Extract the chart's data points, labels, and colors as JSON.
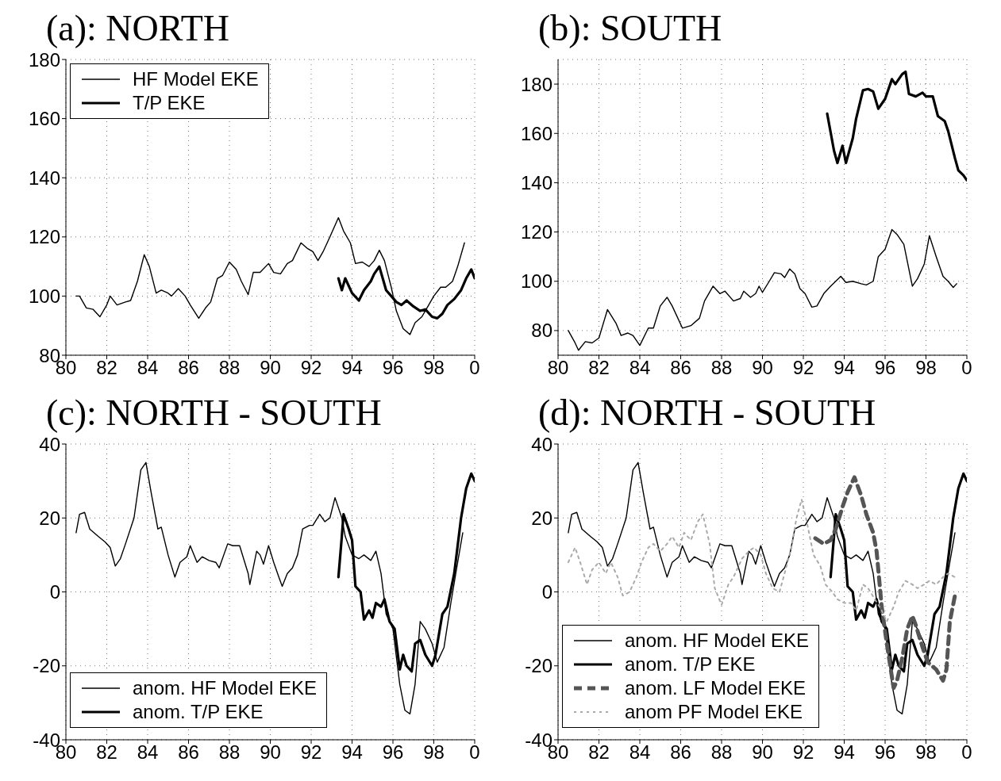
{
  "chart_data": [
    {
      "type": "line",
      "title": "(a):  NORTH",
      "xlim": [
        "1980",
        "2000"
      ],
      "ylim": [
        80,
        180
      ],
      "xticks": [
        {
          "value": "1980",
          "label": "80"
        },
        {
          "value": "1982",
          "label": "82"
        },
        {
          "value": "1984",
          "label": "84"
        },
        {
          "value": "1986",
          "label": "86"
        },
        {
          "value": "1988",
          "label": "88"
        },
        {
          "value": "1990",
          "label": "90"
        },
        {
          "value": "1992",
          "label": "92"
        },
        {
          "value": "1994",
          "label": "94"
        },
        {
          "value": "1996",
          "label": "96"
        },
        {
          "value": "1998",
          "label": "98"
        },
        {
          "value": "2000",
          "label": "0"
        }
      ],
      "yticks": [
        80,
        100,
        120,
        140,
        160,
        180
      ],
      "grid": true,
      "legend": "top left",
      "series": [
        {
          "name": "HF Model EKE",
          "color": "#000000",
          "x": [
            "1980-07",
            "1980-09",
            "1981-01",
            "1981-05",
            "1981-09",
            "1982-01",
            "1982-03",
            "1982-07",
            "1982-12",
            "1983-03",
            "1983-07",
            "1983-11",
            "1984-02",
            "1984-06",
            "1984-09",
            "1985-01",
            "1985-03",
            "1985-07",
            "1985-11",
            "1986-02",
            "1986-07",
            "1986-11",
            "1987-02",
            "1987-06",
            "1987-09",
            "1988-01",
            "1988-05",
            "1988-08",
            "1988-12",
            "1989-03",
            "1989-07",
            "1989-12",
            "1990-03",
            "1990-07",
            "1990-11",
            "1991-02",
            "1991-07",
            "1991-11",
            "1992-02",
            "1992-05",
            "1992-08",
            "1992-12",
            "1993-05",
            "1993-08",
            "1993-12",
            "1994-03",
            "1994-07",
            "1994-11",
            "1995-02",
            "1995-05",
            "1995-08",
            "1995-12",
            "1996-03",
            "1996-07",
            "1996-11",
            "1997-02",
            "1997-06",
            "1997-09",
            "1998-01",
            "1998-05",
            "1998-08",
            "1998-12",
            "1999-03",
            "1999-07"
          ],
          "values": [
            100,
            100,
            96,
            95.5,
            93,
            97,
            100,
            97,
            98,
            98.5,
            105,
            114,
            110,
            101,
            102,
            101,
            100,
            102.5,
            100,
            97,
            92.5,
            96,
            98,
            106,
            107,
            111.5,
            109,
            105,
            100.5,
            108,
            108,
            111,
            108,
            107.5,
            111,
            112,
            118,
            116,
            115,
            112,
            115,
            120,
            126.5,
            122,
            118,
            111,
            111.5,
            110,
            112,
            115.5,
            112,
            103,
            95,
            89,
            87,
            91,
            93,
            96,
            100,
            103,
            103,
            105,
            110,
            118
          ]
        },
        {
          "name": "T/P EKE",
          "color": "#000000",
          "x": [
            "1993-05",
            "1993-07",
            "1993-09",
            "1994-01",
            "1994-05",
            "1994-08",
            "1994-12",
            "1995-02",
            "1995-05",
            "1995-07",
            "1995-09",
            "1995-12",
            "1996-03",
            "1996-06",
            "1996-09",
            "1997-01",
            "1997-05",
            "1997-08",
            "1997-12",
            "1998-03",
            "1998-06",
            "1998-09",
            "1999-01",
            "1999-05",
            "1999-08",
            "1999-11",
            "2000-01"
          ],
          "values": [
            106,
            102,
            106,
            101,
            98.5,
            102,
            105,
            107.5,
            110,
            106,
            102,
            100,
            98,
            97,
            98.5,
            96.5,
            95,
            95.5,
            93,
            92.5,
            94,
            97,
            99,
            102,
            106,
            109,
            106
          ]
        }
      ]
    },
    {
      "type": "line",
      "title": "(b):  SOUTH",
      "xlim": [
        "1980",
        "2000"
      ],
      "ylim": [
        70,
        190
      ],
      "xticks": [
        {
          "value": "1980",
          "label": "80"
        },
        {
          "value": "1982",
          "label": "82"
        },
        {
          "value": "1984",
          "label": "84"
        },
        {
          "value": "1986",
          "label": "86"
        },
        {
          "value": "1988",
          "label": "88"
        },
        {
          "value": "1990",
          "label": "90"
        },
        {
          "value": "1992",
          "label": "92"
        },
        {
          "value": "1994",
          "label": "94"
        },
        {
          "value": "1996",
          "label": "96"
        },
        {
          "value": "1998",
          "label": "98"
        },
        {
          "value": "2000",
          "label": "0"
        }
      ],
      "yticks": [
        80,
        100,
        120,
        140,
        160,
        180
      ],
      "grid": true,
      "series": [
        {
          "color": "#000000",
          "x": [
            "1980-07",
            "1980-11",
            "1981-01",
            "1981-05",
            "1981-09",
            "1982-01",
            "1982-06",
            "1982-11",
            "1983-02",
            "1983-06",
            "1983-09",
            "1984-01",
            "1984-06",
            "1984-09",
            "1985-01",
            "1985-05",
            "1985-08",
            "1986-02",
            "1986-07",
            "1986-12",
            "1987-03",
            "1987-08",
            "1987-12",
            "1988-03",
            "1988-08",
            "1988-12",
            "1989-02",
            "1989-06",
            "1989-09",
            "1989-11",
            "1990-01",
            "1990-05",
            "1990-08",
            "1990-12",
            "1991-02",
            "1991-05",
            "1991-08",
            "1991-11",
            "1992-02",
            "1992-06",
            "1992-09",
            "1993-01",
            "1993-05",
            "1993-08",
            "1993-11",
            "1994-02",
            "1994-06",
            "1994-11",
            "1995-02",
            "1995-06",
            "1995-09",
            "1996-01",
            "1996-05",
            "1996-08",
            "1996-12",
            "1997-05",
            "1997-08",
            "1997-12",
            "1998-03",
            "1998-07",
            "1998-11",
            "1999-02",
            "1999-05",
            "1999-07"
          ],
          "values": [
            80,
            75,
            72,
            75.5,
            75,
            77,
            88.5,
            83,
            78,
            79,
            78,
            74,
            81,
            81,
            90,
            93.5,
            90,
            81,
            82,
            85,
            92,
            98,
            95,
            96,
            92,
            93,
            96,
            93.5,
            95,
            98,
            95.5,
            100,
            103.5,
            103,
            101.5,
            105,
            103,
            97,
            95,
            89.5,
            90,
            95,
            98,
            100,
            102,
            99.5,
            100,
            99,
            98.5,
            100,
            110,
            113,
            121,
            119,
            115,
            98,
            101,
            107,
            118.5,
            110,
            102,
            100,
            97.5,
            99
          ]
        },
        {
          "color": "#000000",
          "x": [
            "1993-03",
            "1993-07",
            "1993-09",
            "1993-12",
            "1994-02",
            "1994-06",
            "1994-08",
            "1994-12",
            "1995-03",
            "1995-06",
            "1995-09",
            "1996-01",
            "1996-05",
            "1996-07",
            "1996-11",
            "1997-01",
            "1997-03",
            "1997-07",
            "1997-11",
            "1998-01",
            "1998-05",
            "1998-08",
            "1998-12",
            "1999-02",
            "1999-06",
            "1999-08",
            "1999-11",
            "2000-01"
          ],
          "values": [
            168,
            153,
            148,
            155,
            148,
            158,
            166,
            177.5,
            178,
            177,
            170,
            174,
            182,
            180,
            184,
            185,
            176,
            175,
            176.5,
            175,
            175,
            167,
            165,
            161,
            150,
            145,
            143,
            141
          ]
        }
      ]
    },
    {
      "type": "line",
      "title": "(c):  NORTH - SOUTH",
      "xlim": [
        "1980",
        "2000"
      ],
      "ylim": [
        -40,
        40
      ],
      "xticks": [
        {
          "value": "1980",
          "label": "80"
        },
        {
          "value": "1982",
          "label": "82"
        },
        {
          "value": "1984",
          "label": "84"
        },
        {
          "value": "1986",
          "label": "86"
        },
        {
          "value": "1988",
          "label": "88"
        },
        {
          "value": "1990",
          "label": "90"
        },
        {
          "value": "1992",
          "label": "92"
        },
        {
          "value": "1994",
          "label": "94"
        },
        {
          "value": "1996",
          "label": "96"
        },
        {
          "value": "1998",
          "label": "98"
        },
        {
          "value": "2000",
          "label": "0"
        }
      ],
      "yticks": [
        -40,
        -20,
        0,
        20,
        40
      ],
      "grid": true,
      "legend": "bottom left",
      "series": [
        {
          "name": "anom. HF Model EKE",
          "color": "#000000",
          "x": [
            "1980-07",
            "1980-09",
            "1980-12",
            "1981-03",
            "1981-08",
            "1981-12",
            "1982-03",
            "1982-06",
            "1982-09",
            "1982-12",
            "1983-05",
            "1983-09",
            "1983-12",
            "1984-03",
            "1984-07",
            "1984-09",
            "1985-01",
            "1985-05",
            "1985-08",
            "1985-12",
            "1986-02",
            "1986-06",
            "1986-09",
            "1987-01",
            "1987-05",
            "1987-07",
            "1987-12",
            "1988-03",
            "1988-07",
            "1988-12",
            "1989-01",
            "1989-05",
            "1989-07",
            "1989-09",
            "1989-12",
            "1990-03",
            "1990-06",
            "1990-08",
            "1990-11",
            "1991-02",
            "1991-05",
            "1991-08",
            "1991-12",
            "1992-02",
            "1992-06",
            "1992-09",
            "1992-12",
            "1993-03",
            "1993-07",
            "1993-09",
            "1994-01",
            "1994-05",
            "1994-08",
            "1994-12",
            "1995-03",
            "1995-06",
            "1995-09",
            "1996-01",
            "1996-05",
            "1996-08",
            "1996-11",
            "1997-02",
            "1997-05",
            "1997-08",
            "1997-12",
            "1998-03",
            "1998-07",
            "1998-11",
            "1999-03",
            "1999-06"
          ],
          "values": [
            16,
            21,
            21.5,
            17,
            15,
            13.5,
            12,
            7,
            9,
            13,
            20,
            33,
            35,
            27,
            17,
            17.5,
            10,
            4,
            8,
            9.5,
            12.5,
            8,
            9.5,
            8.5,
            8,
            6.5,
            13,
            12.5,
            12.5,
            5,
            2,
            11,
            10,
            7.5,
            12.5,
            8,
            4,
            1.5,
            5,
            6.5,
            10,
            17,
            18,
            18,
            21,
            19,
            20,
            25.5,
            20,
            15,
            10,
            9,
            10,
            8.5,
            11,
            5,
            -6,
            -10,
            -25,
            -32,
            -33,
            -25,
            -8,
            -10,
            -14,
            -19,
            -15,
            -3,
            8,
            16
          ]
        },
        {
          "name": "anom. T/P EKE",
          "color": "#000000",
          "x": [
            "1993-05",
            "1993-07",
            "1993-08",
            "1993-11",
            "1994-01",
            "1994-03",
            "1994-06",
            "1994-08",
            "1994-11",
            "1995-01",
            "1995-03",
            "1995-06",
            "1995-08",
            "1995-11",
            "1996-02",
            "1996-05",
            "1996-07",
            "1996-09",
            "1996-12",
            "1997-02",
            "1997-05",
            "1997-08",
            "1997-12",
            "1998-02",
            "1998-06",
            "1998-09",
            "1999-01",
            "1999-05",
            "1999-08",
            "1999-11",
            "2000-01"
          ],
          "values": [
            4,
            15,
            21,
            17,
            14,
            1.5,
            0,
            -7.5,
            -5,
            -7,
            -3,
            -4,
            -2,
            -8,
            -10,
            -21,
            -17,
            -20,
            -21.5,
            -14,
            -13,
            -17,
            -20,
            -17,
            -6,
            -4,
            5,
            20,
            28,
            32,
            30
          ]
        }
      ]
    },
    {
      "type": "line",
      "title": "(d):  NORTH - SOUTH",
      "xlim": [
        "1980",
        "2000"
      ],
      "ylim": [
        -40,
        40
      ],
      "xticks": [
        {
          "value": "1980",
          "label": "80"
        },
        {
          "value": "1982",
          "label": "82"
        },
        {
          "value": "1984",
          "label": "84"
        },
        {
          "value": "1986",
          "label": "86"
        },
        {
          "value": "1988",
          "label": "88"
        },
        {
          "value": "1990",
          "label": "90"
        },
        {
          "value": "1992",
          "label": "92"
        },
        {
          "value": "1994",
          "label": "94"
        },
        {
          "value": "1996",
          "label": "96"
        },
        {
          "value": "1998",
          "label": "98"
        },
        {
          "value": "2000",
          "label": "0"
        }
      ],
      "yticks": [
        -40,
        -20,
        0,
        20,
        40
      ],
      "grid": true,
      "legend": "bottom left",
      "series": [
        {
          "name": "anom. HF Model EKE",
          "color": "#000000",
          "x": [
            "1980-07",
            "1980-09",
            "1980-12",
            "1981-03",
            "1981-08",
            "1981-12",
            "1982-03",
            "1982-06",
            "1982-09",
            "1982-12",
            "1983-05",
            "1983-09",
            "1983-12",
            "1984-03",
            "1984-07",
            "1984-09",
            "1985-01",
            "1985-05",
            "1985-08",
            "1985-12",
            "1986-02",
            "1986-06",
            "1986-09",
            "1987-01",
            "1987-05",
            "1987-07",
            "1987-12",
            "1988-03",
            "1988-07",
            "1988-12",
            "1989-01",
            "1989-05",
            "1989-07",
            "1989-09",
            "1989-12",
            "1990-03",
            "1990-06",
            "1990-08",
            "1990-11",
            "1991-02",
            "1991-05",
            "1991-08",
            "1991-12",
            "1992-02",
            "1992-06",
            "1992-09",
            "1992-12",
            "1993-03",
            "1993-07",
            "1993-09",
            "1994-01",
            "1994-05",
            "1994-08",
            "1994-12",
            "1995-03",
            "1995-06",
            "1995-09",
            "1996-01",
            "1996-05",
            "1996-08",
            "1996-11",
            "1997-02",
            "1997-05",
            "1997-08",
            "1997-12",
            "1998-03",
            "1998-07",
            "1998-11",
            "1999-03",
            "1999-06"
          ],
          "values": [
            16,
            21,
            21.5,
            17,
            15,
            13.5,
            12,
            7,
            9,
            13,
            20,
            33,
            35,
            27,
            17,
            17.5,
            10,
            4,
            8,
            9.5,
            12.5,
            8,
            9.5,
            8.5,
            8,
            6.5,
            13,
            12.5,
            12.5,
            5,
            2,
            11,
            10,
            7.5,
            12.5,
            8,
            4,
            1.5,
            5,
            6.5,
            10,
            17,
            18,
            18,
            21,
            19,
            20,
            25.5,
            20,
            15,
            10,
            9,
            10,
            8.5,
            11,
            5,
            -6,
            -10,
            -25,
            -32,
            -33,
            -25,
            -8,
            -10,
            -14,
            -19,
            -15,
            -3,
            8,
            16
          ]
        },
        {
          "name": "anom. T/P EKE",
          "color": "#000000",
          "x": [
            "1993-05",
            "1993-07",
            "1993-08",
            "1993-11",
            "1994-01",
            "1994-03",
            "1994-06",
            "1994-08",
            "1994-11",
            "1995-01",
            "1995-03",
            "1995-06",
            "1995-08",
            "1995-11",
            "1996-02",
            "1996-05",
            "1996-07",
            "1996-09",
            "1996-12",
            "1997-02",
            "1997-05",
            "1997-08",
            "1997-12",
            "1998-02",
            "1998-06",
            "1998-09",
            "1999-01",
            "1999-05",
            "1999-08",
            "1999-11",
            "2000-01"
          ],
          "values": [
            4,
            15,
            21,
            17,
            14,
            1.5,
            0,
            -7.5,
            -5,
            -7,
            -3,
            -4,
            -2,
            -8,
            -10,
            -21,
            -17,
            -20,
            -21.5,
            -14,
            -13,
            -17,
            -20,
            -17,
            -6,
            -4,
            5,
            20,
            28,
            32,
            30
          ]
        },
        {
          "name": "anom. LF Model EKE",
          "color": "#555555",
          "line_style": "dashed",
          "x": [
            "1992-08",
            "1993-01",
            "1993-05",
            "1993-08",
            "1993-12",
            "1994-03",
            "1994-07",
            "1994-11",
            "1995-02",
            "1995-06",
            "1995-08",
            "1995-11",
            "1996-02",
            "1996-06",
            "1996-08",
            "1996-11",
            "1997-02",
            "1997-05",
            "1997-07",
            "1997-11",
            "1998-02",
            "1998-07",
            "1998-11",
            "1999-01",
            "1999-03",
            "1999-06",
            "1999-07"
          ],
          "values": [
            14.5,
            13,
            14,
            17,
            23,
            27,
            31,
            26,
            21,
            16,
            11,
            -4,
            -14,
            -26,
            -24,
            -18,
            -10,
            -6.5,
            -9,
            -15,
            -19,
            -21,
            -24,
            -21,
            -8,
            -1,
            0
          ]
        },
        {
          "name": "anom PF Model EKE",
          "color": "#aaaaaa",
          "line_style": "dotted",
          "x": [
            "1980-07",
            "1980-11",
            "1981-02",
            "1981-06",
            "1981-09",
            "1982-01",
            "1982-05",
            "1982-08",
            "1982-12",
            "1983-03",
            "1983-07",
            "1983-11",
            "1984-02",
            "1984-06",
            "1984-09",
            "1985-01",
            "1985-05",
            "1985-08",
            "1985-12",
            "1986-03",
            "1986-07",
            "1986-11",
            "1987-02",
            "1987-06",
            "1987-09",
            "1988-01",
            "1988-05",
            "1988-08",
            "1989-01",
            "1989-05",
            "1989-08",
            "1989-12",
            "1990-03",
            "1990-07",
            "1990-11",
            "1991-02",
            "1991-06",
            "1991-09",
            "1991-12",
            "1992-03",
            "1992-07",
            "1992-11",
            "1993-02",
            "1993-06",
            "1993-09",
            "1994-01",
            "1994-05",
            "1994-08",
            "1994-12",
            "1995-03",
            "1995-07",
            "1995-11",
            "1996-02",
            "1996-06",
            "1996-09",
            "1997-01",
            "1997-05",
            "1997-08",
            "1997-12",
            "1998-03",
            "1998-07",
            "1998-11",
            "1999-02",
            "1999-06"
          ],
          "values": [
            8,
            12,
            8,
            2,
            6,
            8,
            5,
            8,
            4,
            -1,
            0,
            4,
            8,
            12,
            13,
            11,
            13,
            15,
            12,
            16,
            14,
            19,
            21,
            13,
            1,
            -3.5,
            2,
            4,
            9,
            11,
            12,
            10,
            5,
            1,
            0,
            5,
            12,
            20,
            25,
            19,
            10,
            7,
            2,
            0,
            -2,
            -3,
            -3,
            -5,
            2,
            1,
            -2,
            -5,
            -8,
            -4,
            0,
            3,
            2,
            1,
            2,
            3,
            2,
            4,
            5,
            4
          ]
        }
      ]
    }
  ]
}
